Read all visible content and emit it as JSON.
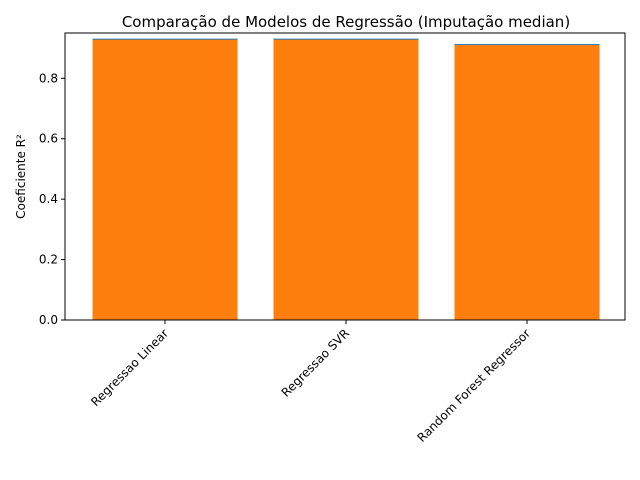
{
  "chart_data": {
    "type": "bar",
    "title": "Comparação de Modelos de Regressão (Imputação median)",
    "xlabel": "",
    "ylabel": "Coeficiente R²",
    "categories": [
      "Regressao Linear",
      "Regressao SVR",
      "Random Forest Regressor"
    ],
    "values": [
      0.928,
      0.928,
      0.91
    ],
    "ylim": [
      0,
      0.95
    ],
    "yticks": [
      "0.0",
      "0.2",
      "0.4",
      "0.6",
      "0.8"
    ],
    "grid": false,
    "legend": "none",
    "bar_color": "#ff7f0e",
    "underlay_color": "#1f77b4"
  }
}
